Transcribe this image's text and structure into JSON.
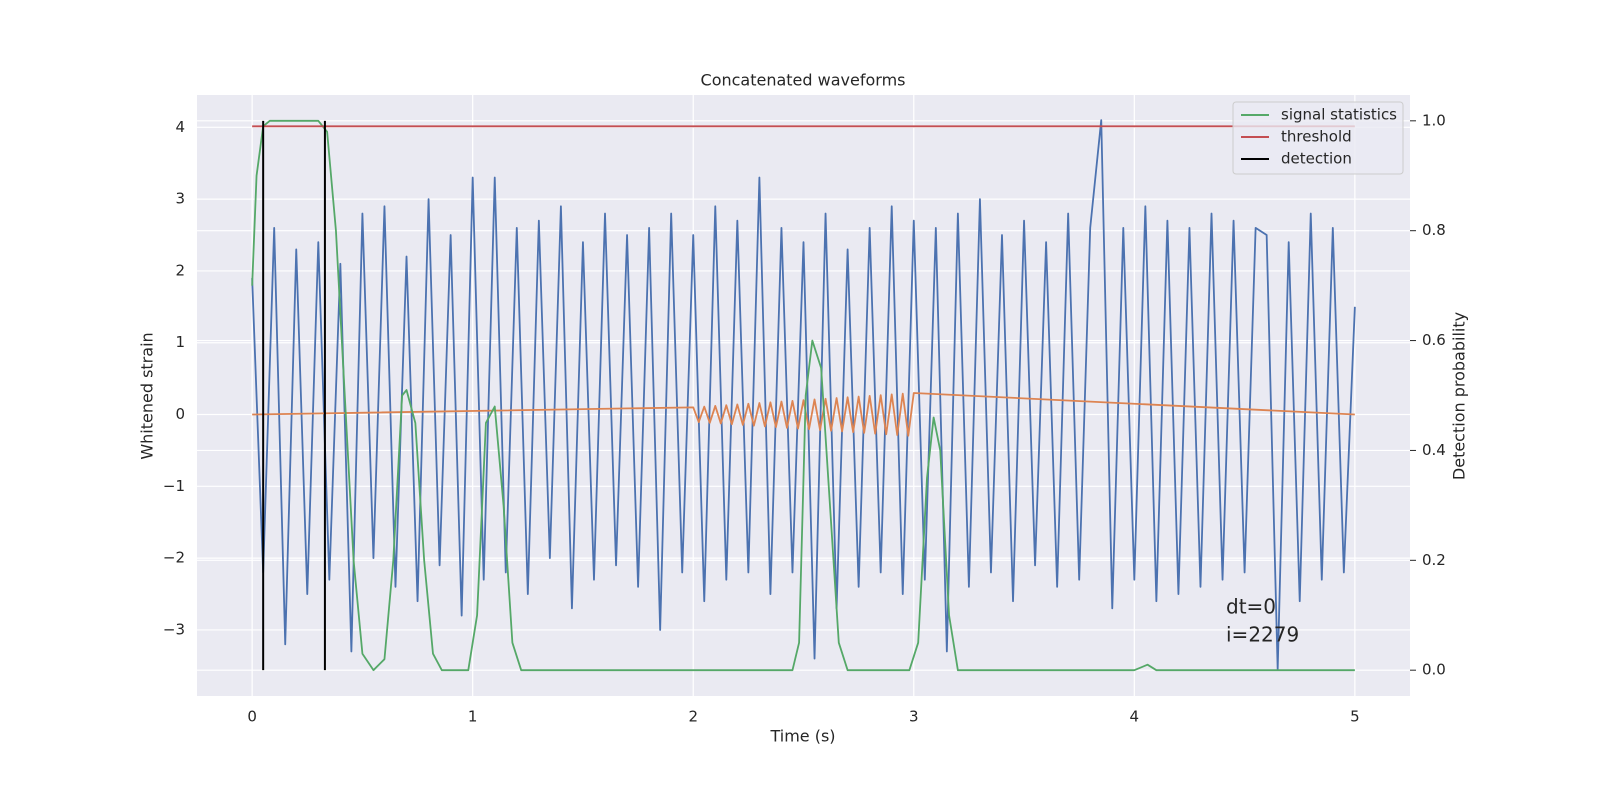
{
  "chart_data": {
    "type": "line",
    "title": "Concatenated waveforms",
    "x_label": "Time (s)",
    "y_label": "Whitened strain",
    "y2_label": "Detection probability",
    "xlim": [
      -0.25,
      5.25
    ],
    "ylim": [
      -3.92,
      4.45
    ],
    "y2lim": [
      -0.047,
      1.047
    ],
    "xticks": [
      0,
      1,
      2,
      3,
      4,
      5
    ],
    "yticks": [
      {
        "value": -3,
        "label": "−3"
      },
      {
        "value": -2,
        "label": "−2"
      },
      {
        "value": -1,
        "label": "−1"
      },
      0,
      1,
      2,
      3,
      4
    ],
    "y2ticks": [
      {
        "value": 0,
        "label": "0.0"
      },
      0.2,
      0.4,
      0.6,
      0.8,
      {
        "value": 1,
        "label": "1.0"
      }
    ],
    "grid": true,
    "legend": "upper right",
    "annotations": [
      "dt=0",
      "i=2279"
    ],
    "series": [
      {
        "color": "#4c72b0",
        "x": [
          0,
          0.05,
          0.1,
          0.15,
          0.2,
          0.25,
          0.3,
          0.35,
          0.4,
          0.45,
          0.5,
          0.55,
          0.6,
          0.65,
          0.7,
          0.75,
          0.8,
          0.85,
          0.9,
          0.95,
          1,
          1.05,
          1.1,
          1.15,
          1.2,
          1.25,
          1.3,
          1.35,
          1.4,
          1.45,
          1.5,
          1.55,
          1.6,
          1.65,
          1.7,
          1.75,
          1.8,
          1.85,
          1.9,
          1.95,
          2,
          2.05,
          2.1,
          2.15,
          2.2,
          2.25,
          2.3,
          2.35,
          2.4,
          2.45,
          2.5,
          2.55,
          2.6,
          2.65,
          2.7,
          2.75,
          2.8,
          2.85,
          2.9,
          2.95,
          3,
          3.05,
          3.1,
          3.15,
          3.2,
          3.25,
          3.3,
          3.35,
          3.4,
          3.45,
          3.5,
          3.55,
          3.6,
          3.65,
          3.7,
          3.75,
          3.8,
          3.85,
          3.9,
          3.95,
          4,
          4.05,
          4.1,
          4.15,
          4.2,
          4.25,
          4.3,
          4.35,
          4.4,
          4.45,
          4.5,
          4.55,
          4.6,
          4.65,
          4.7,
          4.75,
          4.8,
          4.85,
          4.9,
          4.95,
          5
        ],
        "values": [
          1.9,
          -2.2,
          2.6,
          -3.2,
          2.3,
          -2.5,
          2.4,
          -2.3,
          2.1,
          -3.3,
          2.8,
          -2.0,
          2.9,
          -2.4,
          2.2,
          -2.6,
          3.0,
          -2.1,
          2.5,
          -2.8,
          3.3,
          -2.3,
          3.3,
          -2.2,
          2.6,
          -2.5,
          2.7,
          -2.0,
          2.9,
          -2.7,
          2.4,
          -2.3,
          2.8,
          -2.1,
          2.5,
          -2.4,
          2.6,
          -3.0,
          2.8,
          -2.2,
          2.5,
          -2.6,
          2.9,
          -2.3,
          2.7,
          -2.2,
          3.3,
          -2.5,
          2.6,
          -2.2,
          2.4,
          -3.4,
          2.8,
          -2.7,
          2.3,
          -2.4,
          2.6,
          -2.2,
          2.9,
          -2.5,
          2.7,
          -2.3,
          2.6,
          -3.3,
          2.8,
          -2.4,
          3.0,
          -2.2,
          2.5,
          -2.6,
          2.7,
          -2.1,
          2.4,
          -2.4,
          2.8,
          -2.3,
          2.6,
          4.1,
          -2.7,
          2.6,
          -2.3,
          2.9,
          -2.6,
          2.7,
          -2.5,
          2.6,
          -2.4,
          2.8,
          -2.3,
          2.7,
          -2.2,
          2.6,
          2.5,
          -3.55,
          2.4,
          -2.6,
          2.8,
          -2.3,
          2.6,
          -2.2,
          1.5
        ]
      },
      {
        "color": "#dd8452",
        "x": [
          0,
          2,
          2.025,
          2.05,
          2.075,
          2.1,
          2.125,
          2.15,
          2.175,
          2.2,
          2.225,
          2.25,
          2.275,
          2.3,
          2.325,
          2.35,
          2.375,
          2.4,
          2.425,
          2.45,
          2.475,
          2.5,
          2.525,
          2.55,
          2.575,
          2.6,
          2.625,
          2.65,
          2.675,
          2.7,
          2.725,
          2.75,
          2.775,
          2.8,
          2.825,
          2.85,
          2.875,
          2.9,
          2.925,
          2.95,
          2.975,
          3,
          5
        ],
        "values": [
          0,
          0.1,
          -0.105,
          0.11,
          -0.115,
          0.12,
          -0.125,
          0.13,
          -0.135,
          0.14,
          -0.145,
          0.15,
          -0.155,
          0.16,
          -0.165,
          0.17,
          -0.175,
          0.18,
          -0.185,
          0.19,
          -0.195,
          0.2,
          -0.205,
          0.21,
          -0.215,
          0.22,
          -0.225,
          0.23,
          -0.235,
          0.24,
          -0.245,
          0.25,
          -0.255,
          0.26,
          -0.265,
          0.27,
          -0.275,
          0.28,
          -0.285,
          0.29,
          -0.295,
          0.3,
          0
        ]
      },
      {
        "name": "signal statistics",
        "color": "#55a868",
        "axis": "y2",
        "x": [
          0,
          0.02,
          0.05,
          0.08,
          0.3,
          0.34,
          0.38,
          0.42,
          0.46,
          0.5,
          0.55,
          0.6,
          0.64,
          0.68,
          0.7,
          0.74,
          0.78,
          0.82,
          0.86,
          0.98,
          1.02,
          1.06,
          1.1,
          1.14,
          1.18,
          1.22,
          2.45,
          2.48,
          2.51,
          2.54,
          2.58,
          2.62,
          2.66,
          2.7,
          2.98,
          3.02,
          3.06,
          3.09,
          3.12,
          3.16,
          3.2,
          4,
          4.06,
          4.1,
          5
        ],
        "values": [
          0.7,
          0.9,
          0.99,
          1.0,
          1.0,
          0.98,
          0.8,
          0.5,
          0.2,
          0.03,
          0.0,
          0.02,
          0.2,
          0.5,
          0.51,
          0.45,
          0.2,
          0.03,
          0.0,
          0.0,
          0.1,
          0.45,
          0.48,
          0.3,
          0.05,
          0.0,
          0.0,
          0.05,
          0.5,
          0.6,
          0.55,
          0.3,
          0.05,
          0.0,
          0.0,
          0.05,
          0.35,
          0.46,
          0.4,
          0.1,
          0.0,
          0.0,
          0.01,
          0.0,
          0.0
        ]
      },
      {
        "name": "threshold",
        "color": "#c44e52",
        "axis": "y2",
        "x": [
          0,
          5
        ],
        "values": [
          0.99,
          0.99
        ]
      },
      {
        "name": "detection",
        "color": "#000000",
        "axis": "y2",
        "kind": "vline",
        "x": [
          0.05,
          0.33
        ],
        "values": [
          1,
          1
        ]
      }
    ]
  }
}
